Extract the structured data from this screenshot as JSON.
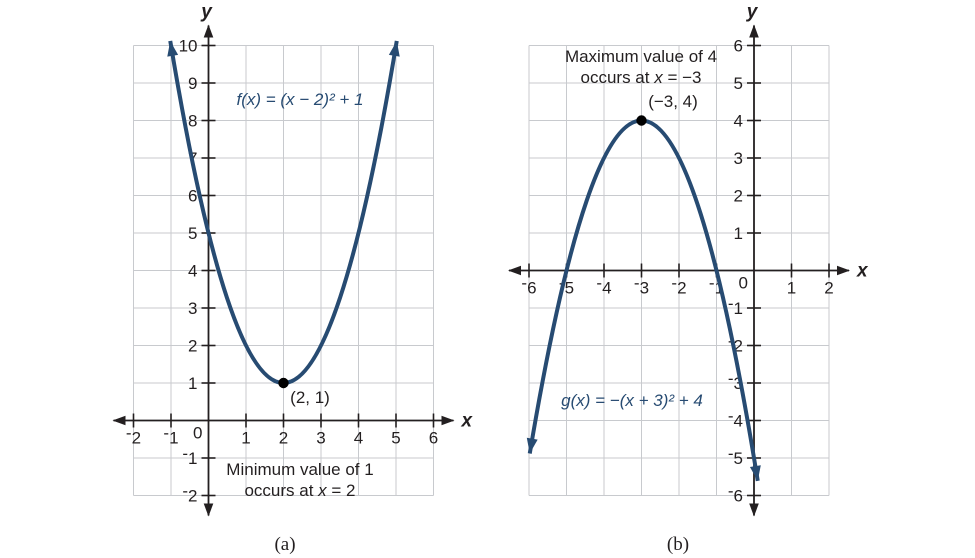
{
  "colors": {
    "curve": "#274b72",
    "grid": "#c8cace",
    "axis": "#231f20",
    "text": "#231f20",
    "vertex_dot": "#000000",
    "background": "#ffffff"
  },
  "chart_data": [
    {
      "id": "a",
      "type": "line",
      "subtype": "parabola-opening-up",
      "caption": "(a)",
      "equation_label": "f(x) = (x − 2)² + 1",
      "function": {
        "form": "a(x−h)²+k",
        "a": 1,
        "h": 2,
        "k": 1
      },
      "vertex": {
        "x": 2,
        "y": 1,
        "label": "(2, 1)",
        "kind": "minimum"
      },
      "extremum_note": {
        "line1": "Minimum value of 1",
        "line2_pre": "occurs at ",
        "line2_var": "x",
        "line2_post": " = 2"
      },
      "xlabel": "x",
      "ylabel": "y",
      "xlim": [
        -2,
        6
      ],
      "ylim": [
        -2,
        10
      ],
      "x_ticks": [
        -2,
        -1,
        1,
        2,
        3,
        4,
        5,
        6
      ],
      "y_ticks": [
        -2,
        -1,
        1,
        2,
        3,
        4,
        5,
        6,
        7,
        8,
        9,
        10
      ],
      "origin_label": "0",
      "grid": true,
      "curve_draw_range": [
        -1.02,
        5.02
      ],
      "sample_points": [
        [
          -1,
          10
        ],
        [
          0,
          5
        ],
        [
          1,
          2
        ],
        [
          2,
          1
        ],
        [
          3,
          2
        ],
        [
          4,
          5
        ],
        [
          5,
          10
        ]
      ]
    },
    {
      "id": "b",
      "type": "line",
      "subtype": "parabola-opening-down",
      "caption": "(b)",
      "equation_label": "g(x) = −(x + 3)² + 4",
      "function": {
        "form": "a(x−h)²+k",
        "a": -1,
        "h": -3,
        "k": 4
      },
      "vertex": {
        "x": -3,
        "y": 4,
        "label": "(−3, 4)",
        "kind": "maximum"
      },
      "extremum_note": {
        "line1": "Maximum value of 4",
        "line2_pre": "occurs at ",
        "line2_var": "x",
        "line2_post": " = −3"
      },
      "xlabel": "x",
      "ylabel": "y",
      "xlim": [
        -6,
        2
      ],
      "ylim": [
        -6,
        6
      ],
      "x_ticks": [
        -6,
        -5,
        -4,
        -3,
        -2,
        -1,
        1,
        2
      ],
      "y_ticks": [
        -6,
        -5,
        -4,
        -3,
        -2,
        -1,
        1,
        2,
        3,
        4,
        5,
        6
      ],
      "origin_label": "0",
      "grid": true,
      "curve_draw_range": [
        -5.98,
        0.1
      ],
      "sample_points": [
        [
          -6,
          -5
        ],
        [
          -5,
          0
        ],
        [
          -4,
          3
        ],
        [
          -3,
          4
        ],
        [
          -2,
          3
        ],
        [
          -1,
          0
        ],
        [
          0,
          -5
        ]
      ]
    }
  ]
}
